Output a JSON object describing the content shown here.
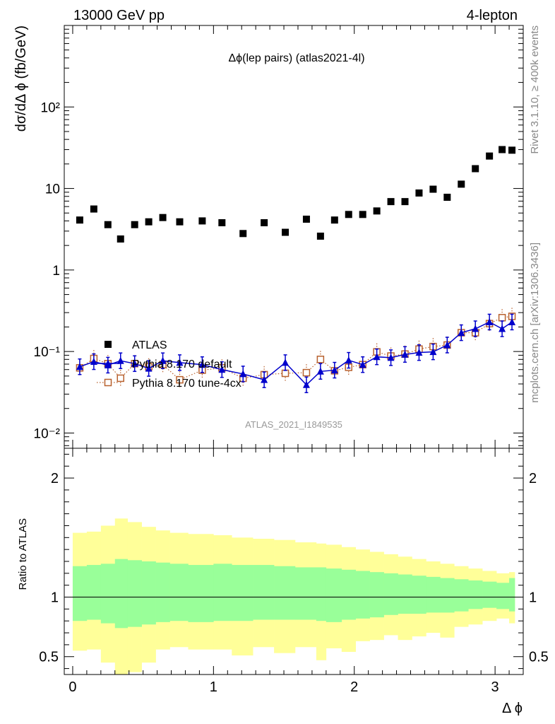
{
  "header": {
    "left": "13000 GeV pp",
    "right": "4-lepton"
  },
  "side_labels": {
    "rivet": "Rivet 3.1.10, ≥ 400k events",
    "mcplots": "mcplots.cern.ch [arXiv:1306.3436]"
  },
  "colors": {
    "atlas": "#000000",
    "default": "#0000cc",
    "tune": "#b8612e",
    "band_inner": "#99ff99",
    "band_outer": "#ffff99"
  },
  "chart_data": [
    {
      "type": "scatter",
      "title": "Δϕ(lep pairs) (atlas2021-4l)",
      "watermark": "ATLAS_2021_I1849535",
      "xlabel": "Δ ϕ",
      "ylabel": "dσ/dΔ ϕ (fb/GeV)",
      "yscale": "log",
      "xlim": [
        -0.06,
        3.2
      ],
      "ylim": [
        0.0065,
        1000
      ],
      "y_ticks": [
        "10⁻²",
        "10⁻¹",
        "1",
        "10",
        "10²"
      ],
      "x": [
        0.05,
        0.15,
        0.25,
        0.34,
        0.44,
        0.54,
        0.64,
        0.76,
        0.92,
        1.06,
        1.21,
        1.36,
        1.51,
        1.66,
        1.76,
        1.86,
        1.96,
        2.06,
        2.16,
        2.26,
        2.36,
        2.46,
        2.56,
        2.66,
        2.76,
        2.86,
        2.96,
        3.05,
        3.12
      ],
      "legend": [
        "ATLAS",
        "Pythia 8.170 default",
        "Pythia 8.170 tune-4cx"
      ],
      "legend_position": "lower-left",
      "series": [
        {
          "name": "ATLAS",
          "marker": "filled-square",
          "values": [
            4.1,
            5.6,
            3.6,
            2.4,
            3.6,
            3.9,
            4.4,
            3.9,
            4.0,
            3.8,
            2.8,
            3.8,
            2.9,
            4.2,
            2.6,
            4.1,
            4.8,
            4.8,
            5.3,
            6.9,
            6.9,
            8.8,
            9.8,
            7.8,
            11.3,
            17.5,
            25,
            30,
            29.5
          ]
        },
        {
          "name": "Pythia 8.170 default",
          "marker": "filled-triangle",
          "line": "solid",
          "values": [
            0.065,
            0.075,
            0.068,
            0.077,
            0.071,
            0.062,
            0.077,
            0.073,
            0.069,
            0.06,
            0.053,
            0.045,
            0.073,
            0.039,
            0.057,
            0.059,
            0.078,
            0.069,
            0.086,
            0.084,
            0.092,
            0.097,
            0.099,
            0.12,
            0.17,
            0.19,
            0.23,
            0.19,
            0.23
          ]
        },
        {
          "name": "Pythia 8.170 tune-4cx",
          "marker": "open-square",
          "line": "dotted",
          "values": [
            0.063,
            0.082,
            0.071,
            0.047,
            0.071,
            0.065,
            0.069,
            0.045,
            0.059,
            0.063,
            0.047,
            0.052,
            0.054,
            0.055,
            0.08,
            0.058,
            0.064,
            0.069,
            0.099,
            0.088,
            0.093,
            0.107,
            0.115,
            0.12,
            0.17,
            0.17,
            0.22,
            0.26,
            0.27
          ]
        }
      ]
    },
    {
      "type": "area",
      "ylabel": "Ratio to ATLAS",
      "xlabel": "Δ ϕ",
      "xlim": [
        -0.06,
        3.2
      ],
      "ylim": [
        0.35,
        2.25
      ],
      "y_ticks": [
        0.5,
        1,
        2
      ],
      "x_ticks": [
        0,
        1,
        2,
        3
      ],
      "bin_edges": [
        0.0,
        0.1,
        0.2,
        0.3,
        0.39,
        0.49,
        0.59,
        0.69,
        0.82,
        1.0,
        1.13,
        1.28,
        1.43,
        1.58,
        1.73,
        1.8,
        1.91,
        2.01,
        2.11,
        2.21,
        2.31,
        2.41,
        2.51,
        2.61,
        2.71,
        2.81,
        2.91,
        3.01,
        3.1,
        3.14
      ],
      "reference_line": 1,
      "bands": [
        {
          "name": "inner",
          "lo": [
            0.8,
            0.81,
            0.78,
            0.74,
            0.75,
            0.77,
            0.79,
            0.8,
            0.79,
            0.8,
            0.8,
            0.81,
            0.81,
            0.81,
            0.8,
            0.79,
            0.81,
            0.82,
            0.83,
            0.85,
            0.86,
            0.86,
            0.87,
            0.87,
            0.88,
            0.9,
            0.91,
            0.9,
            0.88
          ],
          "hi": [
            1.26,
            1.27,
            1.28,
            1.32,
            1.31,
            1.3,
            1.29,
            1.28,
            1.27,
            1.28,
            1.27,
            1.27,
            1.26,
            1.25,
            1.25,
            1.24,
            1.23,
            1.22,
            1.21,
            1.2,
            1.19,
            1.18,
            1.17,
            1.16,
            1.15,
            1.14,
            1.13,
            1.12,
            1.16
          ]
        },
        {
          "name": "outer",
          "lo": [
            0.55,
            0.56,
            0.45,
            0.35,
            0.37,
            0.45,
            0.56,
            0.58,
            0.56,
            0.56,
            0.51,
            0.58,
            0.53,
            0.58,
            0.47,
            0.57,
            0.54,
            0.63,
            0.64,
            0.68,
            0.64,
            0.67,
            0.7,
            0.66,
            0.75,
            0.77,
            0.8,
            0.82,
            0.78
          ],
          "hi": [
            1.54,
            1.55,
            1.6,
            1.66,
            1.63,
            1.59,
            1.56,
            1.54,
            1.53,
            1.52,
            1.5,
            1.49,
            1.48,
            1.46,
            1.45,
            1.44,
            1.42,
            1.4,
            1.38,
            1.36,
            1.34,
            1.32,
            1.3,
            1.28,
            1.26,
            1.24,
            1.22,
            1.2,
            1.21
          ]
        }
      ]
    }
  ]
}
